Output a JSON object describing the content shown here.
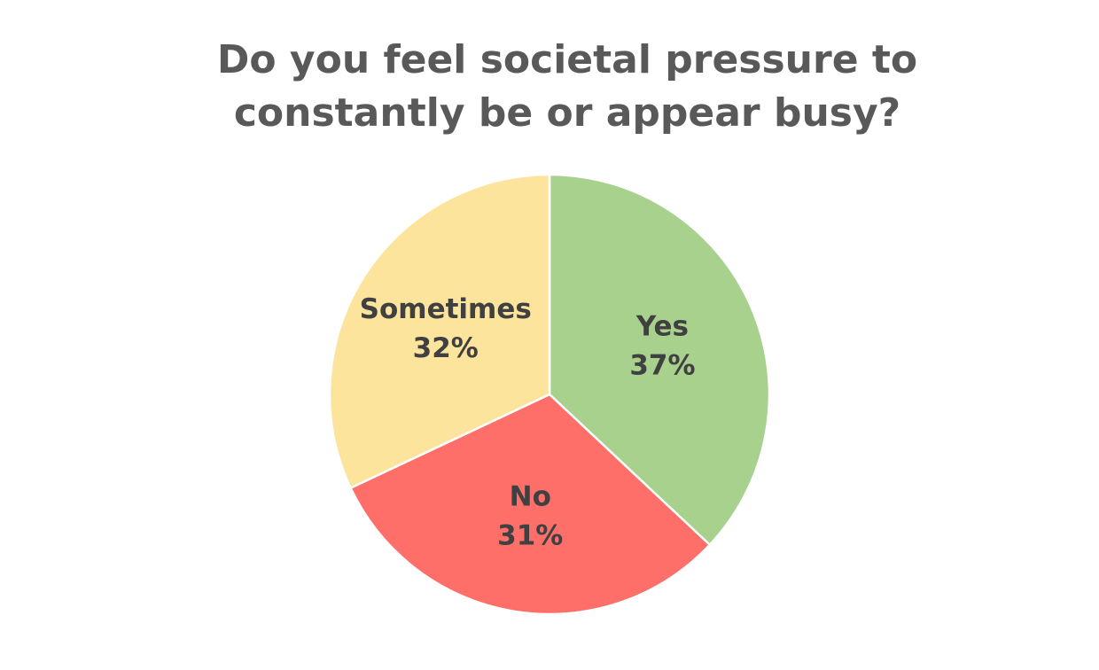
{
  "chart_data": {
    "type": "pie",
    "title": [
      "Do you feel societal pressure to",
      "constantly be or appear busy?"
    ],
    "categories": [
      "Yes",
      "No",
      "Sometimes"
    ],
    "values": [
      37,
      31,
      32
    ],
    "value_labels": [
      "37%",
      "31%",
      "32%"
    ],
    "colors": [
      "#a9d18e",
      "#ff6f69",
      "#fde49c"
    ]
  }
}
